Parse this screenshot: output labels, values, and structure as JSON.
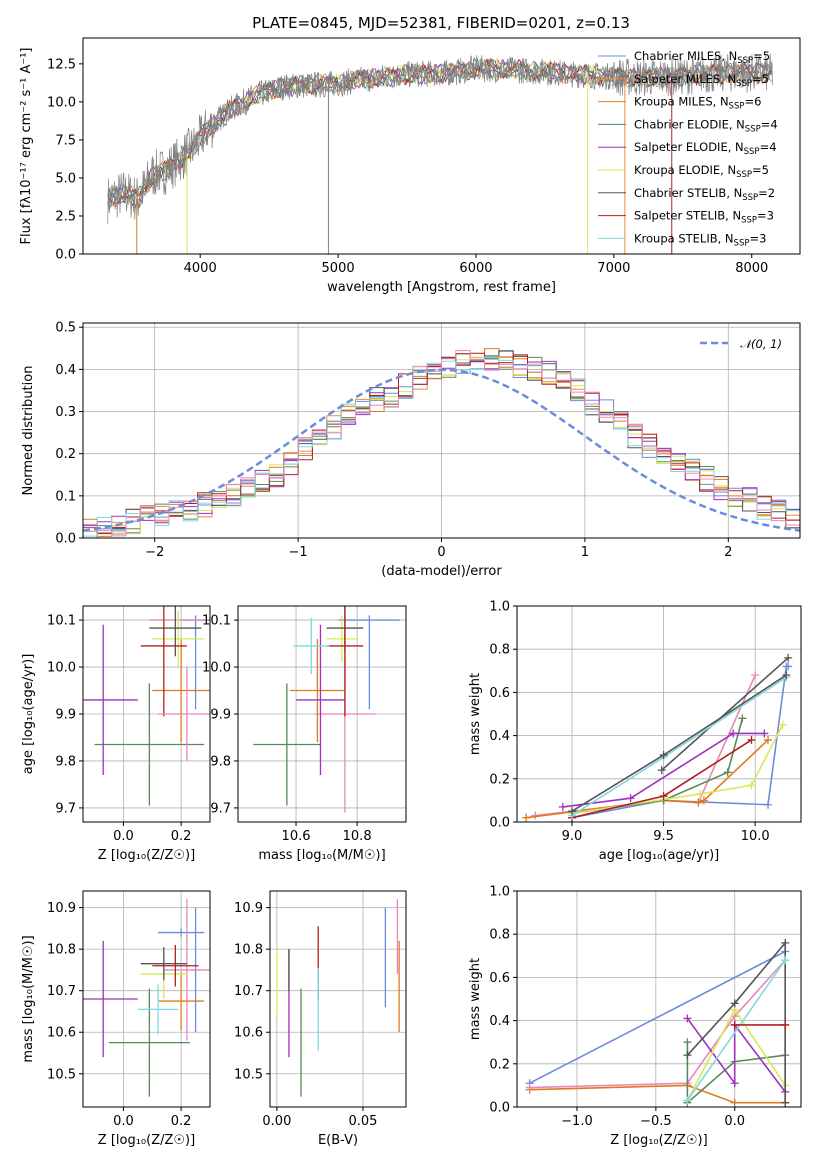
{
  "figure_title": "PLATE=0845, MJD=52381, FIBERID=0201, z=0.13",
  "colors": {
    "chabrier_miles": "#6b8cdc",
    "salpeter_miles": "#f08a3c",
    "kroupa_miles": "#e07a20",
    "chabrier_elodie": "#5a8a5a",
    "salpeter_elodie": "#a030c0",
    "kroupa_elodie": "#d8e858",
    "chabrier_stelib": "#555555",
    "salpeter_stelib": "#b02020",
    "kroupa_stelib": "#80d8e0",
    "pink": "#e888b8",
    "data_grey": "#808080"
  },
  "chart_data": [
    {
      "id": "spectrum",
      "type": "line",
      "title": "PLATE=0845, MJD=52381, FIBERID=0201, z=0.13",
      "xlabel": "wavelength [Angstrom, rest frame]",
      "ylabel": "Flux [fλ10⁻¹⁷ erg cm⁻² s⁻¹ A⁻¹]",
      "xlim": [
        3150,
        8350
      ],
      "ylim": [
        0,
        14.2
      ],
      "xticks": [
        4000,
        5000,
        6000,
        7000,
        8000
      ],
      "yticks": [
        0.0,
        2.5,
        5.0,
        7.5,
        10.0,
        12.5
      ],
      "grid": false,
      "legend_position": "right",
      "legend": [
        {
          "label": "Chabrier MILES, N",
          "sub": "SSP",
          "suffix": "=5",
          "color": "#6b8cdc"
        },
        {
          "label": "Salpeter MILES, N",
          "sub": "SSP",
          "suffix": "=5",
          "color": "#f08a3c"
        },
        {
          "label": "Kroupa MILES, N",
          "sub": "SSP",
          "suffix": "=6",
          "color": "#e07a20"
        },
        {
          "label": "Chabrier ELODIE, N",
          "sub": "SSP",
          "suffix": "=4",
          "color": "#5a8a5a"
        },
        {
          "label": "Salpeter ELODIE, N",
          "sub": "SSP",
          "suffix": "=4",
          "color": "#a030c0"
        },
        {
          "label": "Kroupa ELODIE, N",
          "sub": "SSP",
          "suffix": "=5",
          "color": "#d8e858"
        },
        {
          "label": "Chabrier STELIB, N",
          "sub": "SSP",
          "suffix": "=2",
          "color": "#555555"
        },
        {
          "label": "Salpeter STELIB, N",
          "sub": "SSP",
          "suffix": "=3",
          "color": "#b02020"
        },
        {
          "label": "Kroupa STELIB, N",
          "sub": "SSP",
          "suffix": "=3",
          "color": "#80d8e0"
        }
      ],
      "continuum": {
        "x": [
          3330,
          3450,
          3550,
          3650,
          3750,
          3850,
          3950,
          4050,
          4200,
          4400,
          4600,
          4800,
          5000,
          5200,
          5500,
          5800,
          6000,
          6300,
          6600,
          6900,
          7200,
          7500,
          7800,
          8150
        ],
        "y": [
          3.6,
          4.0,
          3.6,
          5.2,
          5.5,
          6.2,
          7.0,
          8.2,
          9.4,
          10.4,
          11.0,
          11.1,
          11.2,
          11.5,
          11.8,
          11.9,
          12.2,
          12.1,
          11.9,
          11.7,
          11.6,
          11.7,
          11.9,
          11.9
        ]
      }
    },
    {
      "id": "residuals",
      "type": "bar",
      "xlabel": "(data-model)/error",
      "ylabel": "Normed distribution",
      "xlim": [
        -2.5,
        2.5
      ],
      "ylim": [
        0,
        0.51
      ],
      "xticks": [
        -2,
        -1,
        0,
        1,
        2
      ],
      "yticks": [
        0.0,
        0.1,
        0.2,
        0.3,
        0.4,
        0.5
      ],
      "grid": true,
      "legend_position": "top-right",
      "legend": [
        {
          "label": "𝒩(0, 1)",
          "color": "#6b8cdc"
        }
      ],
      "bin_width": 0.1,
      "envelope": [
        0.02,
        0.025,
        0.03,
        0.04,
        0.05,
        0.055,
        0.06,
        0.065,
        0.08,
        0.09,
        0.1,
        0.12,
        0.14,
        0.15,
        0.18,
        0.21,
        0.23,
        0.26,
        0.29,
        0.31,
        0.33,
        0.34,
        0.36,
        0.38,
        0.39,
        0.41,
        0.42,
        0.42,
        0.42,
        0.43,
        0.41,
        0.4,
        0.39,
        0.37,
        0.35,
        0.32,
        0.3,
        0.27,
        0.24,
        0.22,
        0.2,
        0.18,
        0.16,
        0.14,
        0.12,
        0.1,
        0.09,
        0.07,
        0.06,
        0.05
      ]
    },
    {
      "id": "age_vs_Z",
      "type": "scatter",
      "xlabel": "Z [log₁₀(Z/Z☉)]",
      "ylabel": "age  [log₁₀(age/yr)]",
      "xlim": [
        -0.14,
        0.3
      ],
      "ylim": [
        9.67,
        10.13
      ],
      "xticks": [
        0.0,
        0.2
      ],
      "yticks": [
        9.7,
        9.8,
        9.9,
        10.0,
        10.1
      ],
      "grid": true,
      "points": [
        {
          "x": 0.25,
          "y": 10.1,
          "xerr": 0.05,
          "yerr": [
            0.19,
            0.01
          ],
          "color": "#6b8cdc"
        },
        {
          "x": 0.19,
          "y": 10.1,
          "xerr": 0.1,
          "yerr": 0.01,
          "color": "#e888b8"
        },
        {
          "x": 0.2,
          "y": 9.95,
          "xerr": 0.1,
          "yerr": 0.11,
          "color": "#e07a20"
        },
        {
          "x": 0.09,
          "y": 9.835,
          "xerr": 0.19,
          "yerr": 0.13,
          "color": "#5a8a5a"
        },
        {
          "x": -0.07,
          "y": 9.93,
          "xerr": 0.12,
          "yerr": 0.16,
          "color": "#a030c0"
        },
        {
          "x": 0.19,
          "y": 10.06,
          "xerr": 0.09,
          "yerr": 0.06,
          "color": "#d8e858"
        },
        {
          "x": 0.18,
          "y": 10.083,
          "xerr": 0.09,
          "yerr": 0.06,
          "color": "#555555"
        },
        {
          "x": 0.14,
          "y": 10.045,
          "xerr": 0.08,
          "yerr": 0.15,
          "color": "#b02020"
        },
        {
          "x": 0.22,
          "y": 9.9,
          "xerr": 0.1,
          "yerr": 0.1,
          "color": "#e888b8"
        }
      ]
    },
    {
      "id": "age_vs_mass",
      "type": "scatter",
      "xlabel": "mass [log₁₀(M/M☉)]",
      "ylabel": "",
      "xlim": [
        10.41,
        10.96
      ],
      "ylim": [
        9.67,
        10.13
      ],
      "xticks": [
        10.6,
        10.8
      ],
      "yticks": [
        9.7,
        9.8,
        9.9,
        10.0,
        10.1
      ],
      "grid": true,
      "points": [
        {
          "x": 10.84,
          "y": 10.1,
          "xerr": 0.1,
          "yerr": [
            0.19,
            0.01
          ],
          "color": "#6b8cdc"
        },
        {
          "x": 10.76,
          "y": 9.9,
          "xerr": 0.1,
          "yerr": 0.21,
          "color": "#e888b8"
        },
        {
          "x": 10.67,
          "y": 9.95,
          "xerr": 0.09,
          "yerr": 0.11,
          "color": "#e07a20"
        },
        {
          "x": 10.57,
          "y": 9.835,
          "xerr": 0.11,
          "yerr": 0.13,
          "color": "#5a8a5a"
        },
        {
          "x": 10.68,
          "y": 9.93,
          "xerr": 0.08,
          "yerr": 0.16,
          "color": "#a030c0"
        },
        {
          "x": 10.75,
          "y": 10.06,
          "xerr": 0.05,
          "yerr": 0.05,
          "color": "#d8e858"
        },
        {
          "x": 10.76,
          "y": 10.083,
          "xerr": 0.06,
          "yerr": 0.05,
          "color": "#555555"
        },
        {
          "x": 10.76,
          "y": 10.045,
          "xerr": 0.06,
          "yerr": 0.15,
          "color": "#b02020"
        },
        {
          "x": 10.65,
          "y": 10.045,
          "xerr": 0.06,
          "yerr": 0.06,
          "color": "#80d8e0"
        }
      ]
    },
    {
      "id": "massweight_vs_age",
      "type": "line",
      "xlabel": "age  [log₁₀(age/yr)]",
      "ylabel": "mass weight",
      "xlim": [
        8.7,
        10.25
      ],
      "ylim": [
        0,
        1.0
      ],
      "xticks": [
        9.0,
        9.5,
        10.0
      ],
      "yticks": [
        0.0,
        0.2,
        0.4,
        0.6,
        0.8,
        1.0
      ],
      "grid": true,
      "series": [
        {
          "color": "#6b8cdc",
          "x": [
            9.0,
            9.5,
            10.07,
            10.17,
            10.18
          ],
          "y": [
            0.02,
            0.1,
            0.08,
            0.72,
            0.72
          ]
        },
        {
          "color": "#e888b8",
          "x": [
            8.8,
            9.5,
            9.69,
            10.0
          ],
          "y": [
            0.03,
            0.1,
            0.09,
            0.68
          ]
        },
        {
          "color": "#e07a20",
          "x": [
            8.75,
            9.5,
            9.69,
            9.72,
            10.07
          ],
          "y": [
            0.02,
            0.1,
            0.09,
            0.1,
            0.38
          ]
        },
        {
          "color": "#5a8a5a",
          "x": [
            9.0,
            9.5,
            9.85,
            9.93
          ],
          "y": [
            0.04,
            0.1,
            0.23,
            0.48
          ]
        },
        {
          "color": "#a030c0",
          "x": [
            8.95,
            9.32,
            9.88,
            10.05
          ],
          "y": [
            0.07,
            0.11,
            0.41,
            0.41
          ]
        },
        {
          "color": "#d8e858",
          "x": [
            9.0,
            9.7,
            9.98,
            10.15
          ],
          "y": [
            0.04,
            0.13,
            0.17,
            0.45
          ]
        },
        {
          "color": "#555555",
          "x": [
            9.49,
            10.18
          ],
          "y": [
            0.24,
            0.76
          ]
        },
        {
          "color": "#b02020",
          "x": [
            9.0,
            9.5,
            9.98
          ],
          "y": [
            0.02,
            0.12,
            0.38
          ]
        },
        {
          "color": "#80d8e0",
          "x": [
            9.0,
            9.5,
            10.17
          ],
          "y": [
            0.03,
            0.3,
            0.67
          ]
        },
        {
          "color": "#555555",
          "x": [
            9.0,
            9.5,
            10.17
          ],
          "y": [
            0.05,
            0.31,
            0.68
          ]
        }
      ]
    },
    {
      "id": "mass_vs_Z",
      "type": "scatter",
      "xlabel": "Z [log₁₀(Z/Z☉)]",
      "ylabel": "mass [log₁₀(M/M☉)]",
      "xlim": [
        -0.14,
        0.3
      ],
      "ylim": [
        10.42,
        10.94
      ],
      "xticks": [
        0.0,
        0.2
      ],
      "yticks": [
        10.5,
        10.6,
        10.7,
        10.8,
        10.9
      ],
      "grid": true,
      "points": [
        {
          "x": 0.2,
          "y": 10.84,
          "xerr": 0.08,
          "yerr": 0.01,
          "color": "#6b8cdc"
        },
        {
          "x": 0.25,
          "y": 10.75,
          "xerr": 0.01,
          "yerr": 0.15,
          "color": "#6b8cdc"
        },
        {
          "x": 0.22,
          "y": 10.75,
          "xerr": 0.08,
          "yerr": 0.17,
          "color": "#e888b8"
        },
        {
          "x": 0.2,
          "y": 10.675,
          "xerr": 0.08,
          "yerr": 0.07,
          "color": "#e07a20"
        },
        {
          "x": 0.09,
          "y": 10.575,
          "xerr": 0.14,
          "yerr": 0.13,
          "color": "#5a8a5a"
        },
        {
          "x": -0.07,
          "y": 10.68,
          "xerr": 0.12,
          "yerr": 0.14,
          "color": "#a030c0"
        },
        {
          "x": 0.14,
          "y": 10.74,
          "xerr": 0.08,
          "yerr": 0.06,
          "color": "#d8e858"
        },
        {
          "x": 0.14,
          "y": 10.765,
          "xerr": 0.08,
          "yerr": 0.04,
          "color": "#555555"
        },
        {
          "x": 0.18,
          "y": 10.76,
          "xerr": 0.08,
          "yerr": 0.05,
          "color": "#b02020"
        },
        {
          "x": 0.12,
          "y": 10.655,
          "xerr": 0.07,
          "yerr": 0.06,
          "color": "#80d8e0"
        }
      ]
    },
    {
      "id": "mass_vs_EBV",
      "type": "scatter",
      "xlabel": "E(B-V)",
      "ylabel": "",
      "xlim": [
        -0.004,
        0.075
      ],
      "ylim": [
        10.42,
        10.94
      ],
      "xticks": [
        0.0,
        0.05
      ],
      "yticks": [
        10.5,
        10.6,
        10.7,
        10.8,
        10.9
      ],
      "grid": true,
      "points": [
        {
          "x": 0.063,
          "y": 10.78,
          "yerr": 0.12,
          "color": "#6b8cdc"
        },
        {
          "x": 0.07,
          "y": 10.83,
          "yerr": 0.09,
          "color": "#e888b8"
        },
        {
          "x": 0.071,
          "y": 10.71,
          "yerr": 0.11,
          "color": "#e07a20"
        },
        {
          "x": 0.014,
          "y": 10.575,
          "yerr": 0.13,
          "color": "#5a8a5a"
        },
        {
          "x": 0.007,
          "y": 10.67,
          "yerr": 0.13,
          "color": "#a030c0"
        },
        {
          "x": 0.0,
          "y": 10.72,
          "yerr": 0.08,
          "color": "#d8e858"
        },
        {
          "x": 0.007,
          "y": 10.75,
          "yerr": 0.05,
          "color": "#555555"
        },
        {
          "x": 0.024,
          "y": 10.765,
          "yerr": 0.09,
          "color": "#b02020"
        },
        {
          "x": 0.024,
          "y": 10.655,
          "yerr": 0.1,
          "color": "#80d8e0"
        }
      ]
    },
    {
      "id": "massweight_vs_Z",
      "type": "line",
      "xlabel": "Z [log₁₀(Z/Z☉)]",
      "ylabel": "mass weight",
      "xlim": [
        -1.38,
        0.42
      ],
      "ylim": [
        0,
        1.0
      ],
      "xticks": [
        -1.0,
        -0.5,
        0.0
      ],
      "yticks": [
        0.0,
        0.2,
        0.4,
        0.6,
        0.8,
        1.0
      ],
      "grid": true,
      "series": [
        {
          "color": "#6b8cdc",
          "x": [
            -1.3,
            0.32
          ],
          "y": [
            0.11,
            0.72
          ]
        },
        {
          "color": "#e07a20",
          "x": [
            -1.3,
            -0.3,
            0.0,
            0.32,
            0.32
          ],
          "y": [
            0.08,
            0.1,
            0.02,
            0.02,
            0.38
          ]
        },
        {
          "color": "#e888b8",
          "x": [
            -1.3,
            -0.3,
            0.0,
            0.32
          ],
          "y": [
            0.09,
            0.11,
            0.42,
            0.68
          ]
        },
        {
          "color": "#5a8a5a",
          "x": [
            -0.3,
            -0.3,
            0.0,
            0.32
          ],
          "y": [
            0.3,
            0.02,
            0.21,
            0.24
          ]
        },
        {
          "color": "#a030c0",
          "x": [
            -0.3,
            0.0,
            0.0,
            0.32
          ],
          "y": [
            0.41,
            0.11,
            0.38,
            0.07
          ]
        },
        {
          "color": "#d8e858",
          "x": [
            -0.3,
            0.0,
            0.32
          ],
          "y": [
            0.03,
            0.45,
            0.1
          ]
        },
        {
          "color": "#555555",
          "x": [
            -0.3,
            0.0,
            0.32,
            0.32
          ],
          "y": [
            0.24,
            0.48,
            0.76,
            0.02
          ]
        },
        {
          "color": "#80d8e0",
          "x": [
            -0.3,
            0.32
          ],
          "y": [
            0.03,
            0.68
          ]
        },
        {
          "color": "#b02020",
          "x": [
            0.0,
            0.32
          ],
          "y": [
            0.38,
            0.38
          ]
        }
      ]
    }
  ]
}
